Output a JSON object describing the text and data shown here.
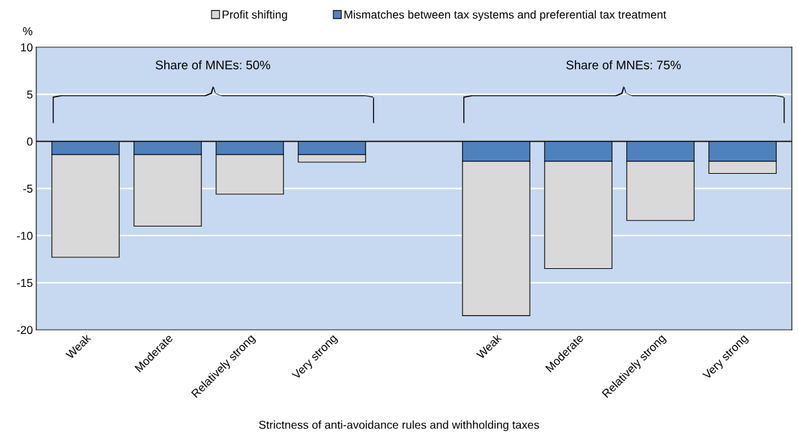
{
  "chart_data": {
    "type": "bar",
    "stacked": true,
    "xlabel": "Strictness of anti-avoidance rules and withholding taxes",
    "ylabel": "%",
    "categories": [
      "Weak",
      "Moderate",
      "Relatively strong",
      "Very strong",
      null,
      "Weak",
      "Moderate",
      "Relatively strong",
      "Very strong"
    ],
    "series": [
      {
        "name": "Mismatches between tax systems and preferential tax treatment",
        "color": "#4f81bd",
        "values": [
          -1.4,
          -1.4,
          -1.4,
          -1.4,
          null,
          -2.1,
          -2.1,
          -2.1,
          -2.1
        ]
      },
      {
        "name": "Profit shifting",
        "color": "#d9d9d9",
        "values": [
          -10.9,
          -7.6,
          -4.2,
          -0.8,
          null,
          -16.4,
          -11.4,
          -6.3,
          -1.3
        ]
      }
    ],
    "annotations": [
      "Share of MNEs: 50%",
      "Share of MNEs: 75%"
    ],
    "ylim": [
      -20,
      10
    ],
    "yticks": [
      -20,
      -15,
      -10,
      -5,
      0,
      5,
      10
    ],
    "grid": "y",
    "legend": "top"
  }
}
